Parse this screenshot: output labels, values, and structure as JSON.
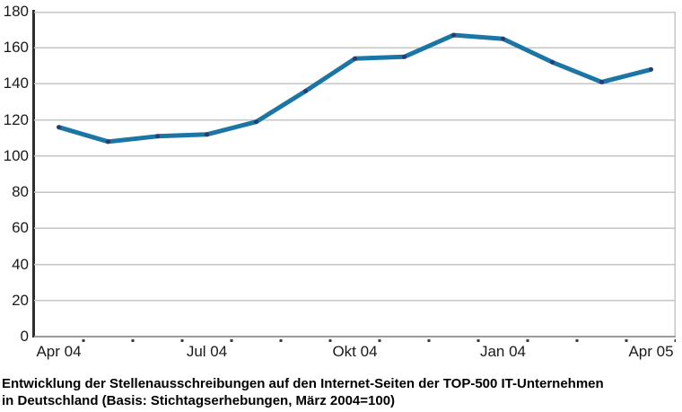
{
  "chart_data": {
    "type": "line",
    "title": "",
    "categories": [
      "Apr 04",
      "",
      "",
      "Jul 04",
      "",
      "",
      "Okt 04",
      "",
      "",
      "Jan 04",
      "",
      "",
      "Apr 05"
    ],
    "values": [
      116,
      108,
      111,
      112,
      119,
      136,
      154,
      155,
      167,
      165,
      152,
      141,
      148
    ],
    "y_ticks": [
      0,
      20,
      40,
      60,
      80,
      100,
      120,
      140,
      160,
      180
    ],
    "ylim": [
      0,
      180
    ],
    "grid": true,
    "legend_position": "none",
    "colors": {
      "line": "#1B76A6",
      "marker": "#2B3A70",
      "gridline": "#c6c6c6",
      "x_axis": "#9b9b9b",
      "x_tick": "#3a3a3a",
      "y_axis": "#2e2e2e",
      "label_text": "#1a1a1a"
    },
    "caption_lines": [
      "Entwicklung der Stellenausschreibungen auf den Internet-Seiten der TOP-500 IT-Unternehmen",
      "in Deutschland (Basis: Stichtagserhebungen, März 2004=100)"
    ]
  }
}
